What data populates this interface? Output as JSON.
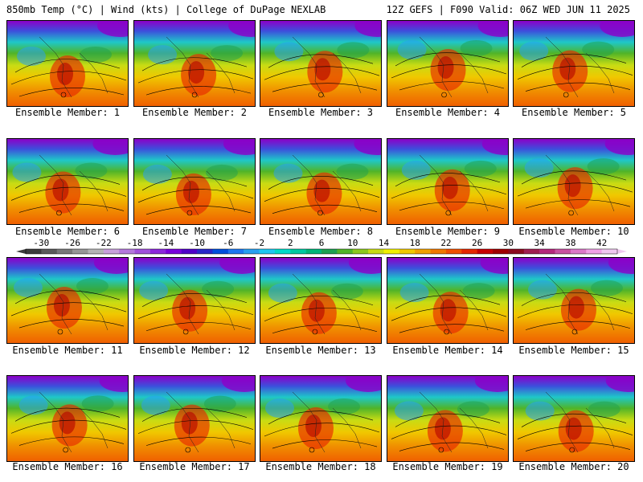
{
  "header": {
    "title_left": "850mb Temp (°C) | Wind (kts) | College of DuPage NEXLAB",
    "title_right": "12Z GEFS | F090 Valid: 06Z WED JUN 11 2025"
  },
  "panels": [
    {
      "label": "Ensemble Member: 1"
    },
    {
      "label": "Ensemble Member: 2"
    },
    {
      "label": "Ensemble Member: 3"
    },
    {
      "label": "Ensemble Member: 4"
    },
    {
      "label": "Ensemble Member: 5"
    },
    {
      "label": "Ensemble Member: 6"
    },
    {
      "label": "Ensemble Member: 7"
    },
    {
      "label": "Ensemble Member: 8"
    },
    {
      "label": "Ensemble Member: 9"
    },
    {
      "label": "Ensemble Member: 10"
    },
    {
      "label": "Ensemble Member: 11"
    },
    {
      "label": "Ensemble Member: 12"
    },
    {
      "label": "Ensemble Member: 13"
    },
    {
      "label": "Ensemble Member: 14"
    },
    {
      "label": "Ensemble Member: 15"
    },
    {
      "label": "Ensemble Member: 16"
    },
    {
      "label": "Ensemble Member: 17"
    },
    {
      "label": "Ensemble Member: 18"
    },
    {
      "label": "Ensemble Member: 19"
    },
    {
      "label": "Ensemble Member: 20"
    }
  ],
  "colorbar": {
    "ticks": [
      "-30",
      "-26",
      "-22",
      "-18",
      "-14",
      "-10",
      "-6",
      "-2",
      "2",
      "6",
      "10",
      "14",
      "18",
      "22",
      "26",
      "30",
      "34",
      "38",
      "42"
    ],
    "colors": [
      "#3c3c3c",
      "#5a5a5a",
      "#787878",
      "#969696",
      "#b4b4b4",
      "#c8a0dc",
      "#b478dc",
      "#a050dc",
      "#8c28dc",
      "#7800dc",
      "#5000c8",
      "#2828c8",
      "#0050dc",
      "#1e78f0",
      "#28a0f0",
      "#1ec8f0",
      "#00dcc8",
      "#00c8a0",
      "#00b478",
      "#1ea050",
      "#50b428",
      "#8cc81e",
      "#c8dc14",
      "#f0f000",
      "#f0c800",
      "#f0a000",
      "#f07800",
      "#f05000",
      "#e62800",
      "#c80000",
      "#a00000",
      "#8c0a1e",
      "#a01e50",
      "#b4287c",
      "#c850a0",
      "#dc78c8",
      "#f0a0e6",
      "#f0c8f0"
    ]
  }
}
